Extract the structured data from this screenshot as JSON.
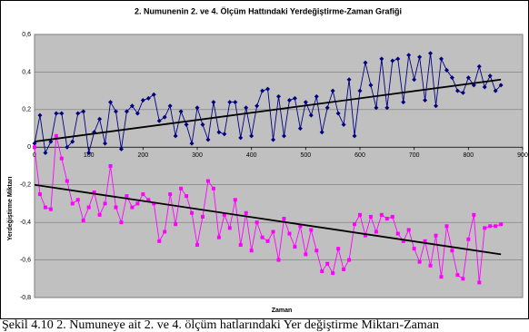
{
  "chart_data": {
    "type": "line",
    "title": "2. Numunenin 2. ve 4. Ölçüm Hattındaki Yerdeğiştirme-Zaman Grafiği",
    "x_label": "Zaman",
    "y_label": "Yerdeğiştirme Miktarı",
    "caption": "Şekil 4.10 2. Numuneye ait 2. ve 4. ölçüm hatlarındaki Yer değiştirme Miktarı-Zaman",
    "x": [
      0,
      10,
      20,
      30,
      40,
      50,
      60,
      70,
      80,
      90,
      100,
      110,
      120,
      130,
      140,
      150,
      160,
      170,
      180,
      190,
      200,
      210,
      220,
      230,
      240,
      250,
      260,
      270,
      280,
      290,
      300,
      310,
      320,
      330,
      340,
      350,
      360,
      370,
      380,
      390,
      400,
      410,
      420,
      430,
      440,
      450,
      460,
      470,
      480,
      490,
      500,
      510,
      520,
      530,
      540,
      550,
      560,
      570,
      580,
      590,
      600,
      610,
      620,
      630,
      640,
      650,
      660,
      670,
      680,
      690,
      700,
      710,
      720,
      730,
      740,
      750,
      760,
      770,
      780,
      790,
      800,
      810,
      820,
      830,
      840,
      850,
      860
    ],
    "series": [
      {
        "color": "#000080",
        "marker": "diamond",
        "values": [
          0.02,
          0.17,
          -0.03,
          0.03,
          0.18,
          0.18,
          0.0,
          0.03,
          0.18,
          0.19,
          -0.03,
          0.08,
          0.15,
          0.02,
          0.24,
          0.19,
          -0.01,
          0.19,
          0.22,
          0.18,
          0.25,
          0.26,
          0.28,
          0.14,
          0.16,
          0.22,
          0.06,
          0.19,
          0.12,
          0.02,
          0.21,
          0.12,
          0.04,
          0.24,
          0.08,
          0.07,
          0.24,
          0.24,
          0.05,
          0.21,
          0.06,
          0.22,
          0.3,
          0.31,
          0.04,
          0.27,
          0.06,
          0.25,
          0.26,
          0.1,
          0.24,
          0.17,
          0.27,
          0.08,
          0.21,
          0.3,
          0.18,
          0.12,
          0.36,
          0.06,
          0.3,
          0.45,
          0.33,
          0.21,
          0.47,
          0.21,
          0.46,
          0.47,
          0.24,
          0.49,
          0.36,
          0.48,
          0.25,
          0.5,
          0.22,
          0.47,
          0.41,
          0.37,
          0.3,
          0.29,
          0.37,
          0.33,
          0.43,
          0.32,
          0.38,
          0.3,
          0.33
        ]
      },
      {
        "color": "#ff00ff",
        "marker": "square",
        "values": [
          0.0,
          -0.25,
          -0.32,
          -0.33,
          0.06,
          -0.06,
          -0.18,
          -0.3,
          -0.28,
          -0.39,
          -0.32,
          -0.24,
          -0.36,
          -0.3,
          -0.1,
          -0.32,
          -0.4,
          -0.26,
          -0.32,
          -0.3,
          -0.25,
          -0.28,
          -0.3,
          -0.5,
          -0.45,
          -0.25,
          -0.41,
          -0.22,
          -0.26,
          -0.35,
          -0.52,
          -0.37,
          -0.18,
          -0.22,
          -0.48,
          -0.36,
          -0.43,
          -0.28,
          -0.52,
          -0.35,
          -0.55,
          -0.4,
          -0.48,
          -0.5,
          -0.45,
          -0.6,
          -0.38,
          -0.46,
          -0.53,
          -0.42,
          -0.57,
          -0.44,
          -0.55,
          -0.66,
          -0.62,
          -0.67,
          -0.54,
          -0.65,
          -0.6,
          -0.41,
          -0.36,
          -0.47,
          -0.37,
          -0.45,
          -0.36,
          -0.38,
          -0.37,
          -0.46,
          -0.5,
          -0.44,
          -0.54,
          -0.61,
          -0.5,
          -0.63,
          -0.47,
          -0.69,
          -0.42,
          -0.55,
          -0.68,
          -0.7,
          -0.49,
          -0.36,
          -0.72,
          -0.43,
          -0.42,
          -0.42,
          -0.41
        ]
      }
    ],
    "trendlines": [
      {
        "color": "#000000",
        "x": [
          0,
          860
        ],
        "values": [
          0.03,
          0.36
        ]
      },
      {
        "color": "#000000",
        "x": [
          0,
          860
        ],
        "values": [
          -0.2,
          -0.57
        ]
      }
    ],
    "xlim": [
      0,
      900
    ],
    "xticks": [
      0,
      100,
      200,
      300,
      400,
      500,
      600,
      700,
      800,
      900
    ],
    "ylim": [
      -0.8,
      0.6
    ],
    "yticks": [
      {
        "value": -0.8,
        "label": "-0,8"
      },
      {
        "value": -0.6,
        "label": "-0,6"
      },
      {
        "value": -0.4,
        "label": "-0,4"
      },
      {
        "value": -0.2,
        "label": "-0,2"
      },
      0,
      {
        "value": 0.2,
        "label": "0,2"
      },
      {
        "value": 0.4,
        "label": "0,4"
      },
      {
        "value": 0.6,
        "label": "0,6"
      }
    ],
    "grid": true,
    "plot_background": "#c0c0c0"
  }
}
